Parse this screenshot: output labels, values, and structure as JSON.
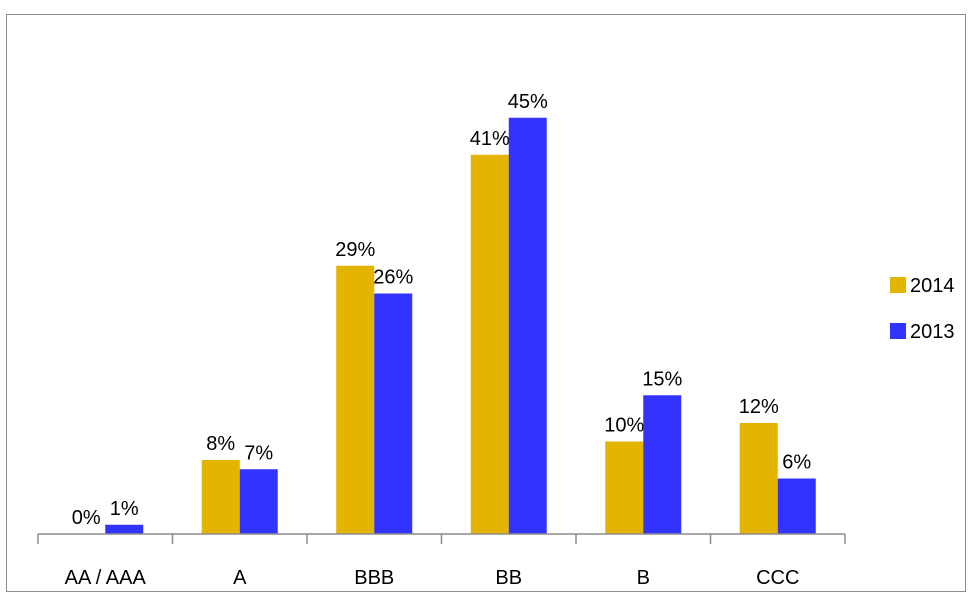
{
  "chart_data": {
    "type": "bar",
    "title": "",
    "xlabel": "",
    "ylabel": "",
    "categories": [
      "AA / AAA",
      "A",
      "BBB",
      "BB",
      "B",
      "CCC"
    ],
    "series": [
      {
        "name": "2014",
        "color": "#e3b400",
        "values": [
          0,
          8,
          29,
          41,
          10,
          12
        ],
        "labels": [
          "0%",
          "8%",
          "29%",
          "41%",
          "10%",
          "12%"
        ]
      },
      {
        "name": "2013",
        "color": "#3333ff",
        "values": [
          1,
          7,
          26,
          45,
          15,
          6
        ],
        "labels": [
          "1%",
          "7%",
          "26%",
          "45%",
          "15%",
          "6%"
        ]
      }
    ],
    "ylim": [
      0,
      48
    ],
    "value_format": "percent",
    "grid": false,
    "y_axis_visible": false,
    "legend_position": "right"
  }
}
